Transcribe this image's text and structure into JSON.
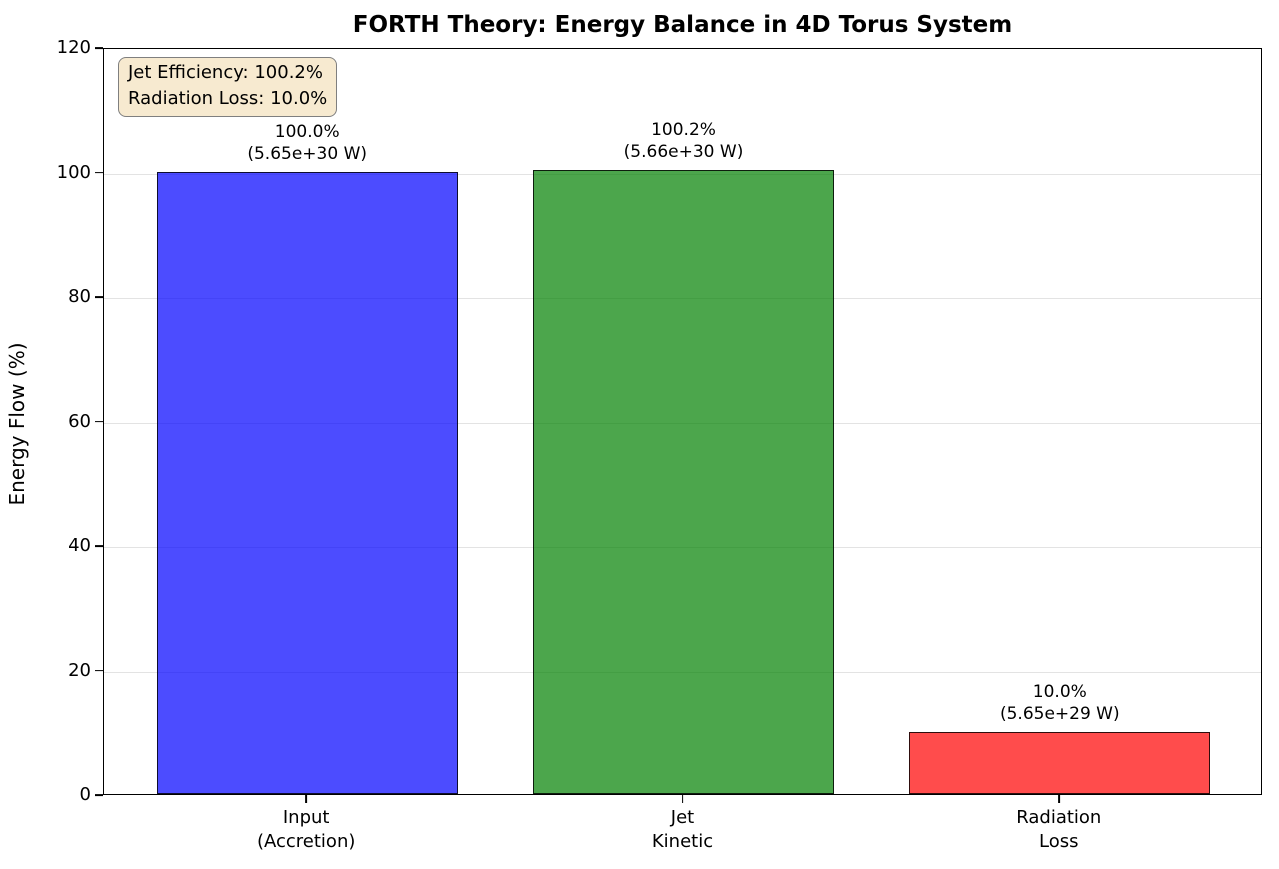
{
  "chart_data": {
    "type": "bar",
    "title": "FORTH Theory: Energy Balance in 4D Torus System",
    "xlabel": "",
    "ylabel": "Energy Flow (%)",
    "ylim": [
      0,
      120
    ],
    "yticks": [
      0,
      20,
      40,
      60,
      80,
      100,
      120
    ],
    "grid": true,
    "legend": "none",
    "categories": [
      [
        "Input",
        "(Accretion)"
      ],
      [
        "Jet",
        "Kinetic"
      ],
      [
        "Radiation",
        "Loss"
      ]
    ],
    "values": [
      100.0,
      100.2,
      10.0
    ],
    "bar_labels": [
      [
        "100.0%",
        "(5.65e+30 W)"
      ],
      [
        "100.2%",
        "(5.66e+30 W)"
      ],
      [
        "10.0%",
        "(5.65e+29 W)"
      ]
    ],
    "colors": [
      "#0000FF",
      "#008000",
      "#FF0000"
    ],
    "bar_alpha": 0.7,
    "bar_edge_color": "#000000",
    "annotation": [
      "Jet Efficiency: 100.2%",
      "Radiation Loss: 10.0%"
    ],
    "annotation_bg": "#F7EAD0",
    "grid_color": "#B0B0B0"
  }
}
